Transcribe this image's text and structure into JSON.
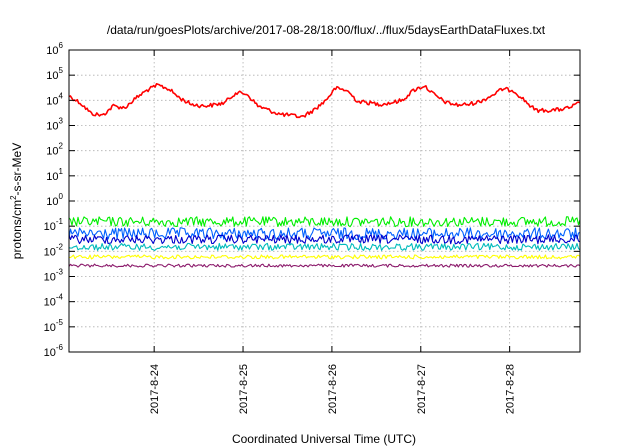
{
  "chart_data": {
    "type": "line",
    "title": "/data/run/goesPlots/archive/2017-08-28/18:00/flux/../flux/5daysEarthDataFluxes.txt",
    "xlabel": "Coordinated Universal Time (UTC)",
    "ylabel": {
      "prefix": "protons/cm",
      "superscript": "2",
      "suffix": "-s-sr-MeV"
    },
    "y_scale": "log",
    "ylim": [
      1e-06,
      1000000.0
    ],
    "y_ticks": [
      {
        "base": "10",
        "exp": "-6"
      },
      {
        "base": "10",
        "exp": "-5"
      },
      {
        "base": "10",
        "exp": "-4"
      },
      {
        "base": "10",
        "exp": "-3"
      },
      {
        "base": "10",
        "exp": "-2"
      },
      {
        "base": "10",
        "exp": "-1"
      },
      {
        "base": "10",
        "exp": "0"
      },
      {
        "base": "10",
        "exp": "1"
      },
      {
        "base": "10",
        "exp": "2"
      },
      {
        "base": "10",
        "exp": "3"
      },
      {
        "base": "10",
        "exp": "4"
      },
      {
        "base": "10",
        "exp": "5"
      },
      {
        "base": "10",
        "exp": "6"
      }
    ],
    "xlim": [
      "2017-08-23T01:00",
      "2017-08-28T19:00"
    ],
    "x_ticks": [
      "2017-8-24",
      "2017-8-25",
      "2017-8-26",
      "2017-8-27",
      "2017-8-28"
    ],
    "grid": true,
    "series": [
      {
        "color": "#ff0000",
        "x": [
          "2017-08-23T01:00",
          "2017-08-23T04:00",
          "2017-08-23T07:00",
          "2017-08-23T10:00",
          "2017-08-23T13:00",
          "2017-08-23T16:00",
          "2017-08-23T19:00",
          "2017-08-23T22:00",
          "2017-08-24T01:00",
          "2017-08-24T04:00",
          "2017-08-24T07:00",
          "2017-08-24T10:00",
          "2017-08-24T13:00",
          "2017-08-24T16:00",
          "2017-08-24T19:00",
          "2017-08-24T22:00",
          "2017-08-25T01:00",
          "2017-08-25T04:00",
          "2017-08-25T07:00",
          "2017-08-25T10:00",
          "2017-08-25T13:00",
          "2017-08-25T16:00",
          "2017-08-25T19:00",
          "2017-08-25T22:00",
          "2017-08-26T01:00",
          "2017-08-26T04:00",
          "2017-08-26T07:00",
          "2017-08-26T10:00",
          "2017-08-26T13:00",
          "2017-08-26T16:00",
          "2017-08-26T19:00",
          "2017-08-26T22:00",
          "2017-08-27T01:00",
          "2017-08-27T04:00",
          "2017-08-27T07:00",
          "2017-08-27T10:00",
          "2017-08-27T13:00",
          "2017-08-27T16:00",
          "2017-08-27T19:00",
          "2017-08-27T22:00",
          "2017-08-28T01:00",
          "2017-08-28T04:00",
          "2017-08-28T07:00",
          "2017-08-28T10:00",
          "2017-08-28T13:00",
          "2017-08-28T16:00",
          "2017-08-28T19:00"
        ],
        "values": [
          15000,
          8000,
          3000,
          2500,
          6000,
          5000,
          12000,
          25000,
          40000,
          28000,
          12000,
          7000,
          6000,
          6500,
          8000,
          20000,
          18000,
          6000,
          4000,
          2800,
          2500,
          2200,
          4000,
          9000,
          30000,
          25000,
          9000,
          8000,
          7000,
          8000,
          10000,
          25000,
          38000,
          15000,
          8000,
          6500,
          7000,
          9000,
          15000,
          28000,
          25000,
          10000,
          4000,
          4000,
          4200,
          5000,
          8000
        ]
      },
      {
        "color": "#00ee00",
        "x": [
          "2017-08-23T01:00",
          "2017-08-28T19:00"
        ],
        "values": [
          0.15,
          0.15
        ]
      },
      {
        "color": "#0060ff",
        "x": [
          "2017-08-23T01:00",
          "2017-08-28T19:00"
        ],
        "values": [
          0.05,
          0.05
        ]
      },
      {
        "color": "#0000cc",
        "x": [
          "2017-08-23T01:00",
          "2017-08-28T19:00"
        ],
        "values": [
          0.03,
          0.03
        ]
      },
      {
        "color": "#00bbbb",
        "x": [
          "2017-08-23T01:00",
          "2017-08-28T19:00"
        ],
        "values": [
          0.015,
          0.015
        ]
      },
      {
        "color": "#ffff00",
        "x": [
          "2017-08-23T01:00",
          "2017-08-28T19:00"
        ],
        "values": [
          0.006,
          0.006
        ]
      },
      {
        "color": "#8b1a6b",
        "x": [
          "2017-08-23T01:00",
          "2017-08-28T19:00"
        ],
        "values": [
          0.0027,
          0.0027
        ]
      }
    ]
  }
}
